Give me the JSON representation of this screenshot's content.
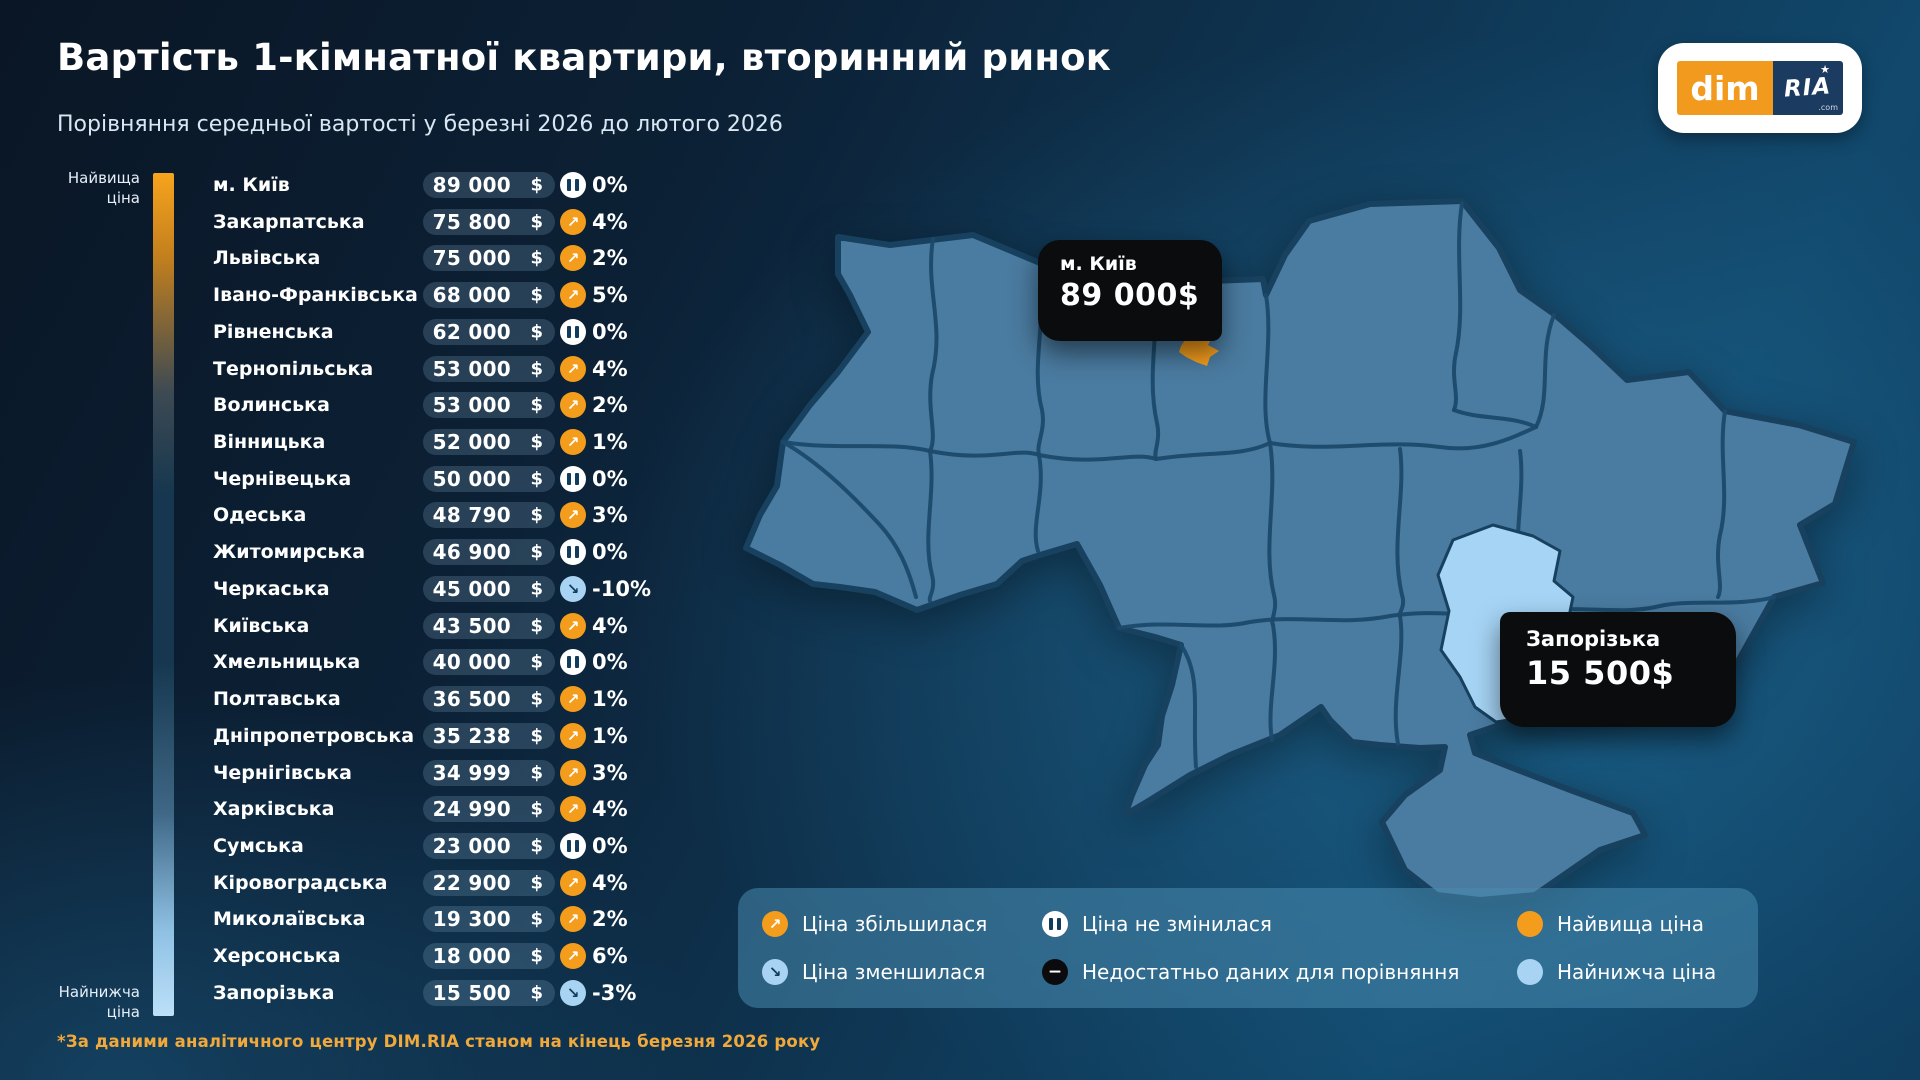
{
  "header": {
    "title": "Вартість 1-кімнатної квартири, вторинний ринок",
    "subtitle": "Порівняння середньої вартості у березні 2026 до лютого 2026"
  },
  "logo": {
    "dim": "dim",
    "ria": "RIA",
    "com": ".com",
    "star": "★"
  },
  "scale": {
    "top": "Найвища ціна",
    "bottom": "Найнижча ціна"
  },
  "currency": "$",
  "footnote": "*За даними аналітичного центру DIM.RIA станом на кінець березня 2026 року",
  "callouts": [
    {
      "id": "kyiv",
      "title": "м. Київ",
      "value": "89 000$"
    },
    {
      "id": "zaporizka",
      "title": "Запорізька",
      "value": "15 500$"
    }
  ],
  "legend": {
    "items": [
      {
        "icon": "up",
        "label": "Ціна збільшилася"
      },
      {
        "icon": "same",
        "label": "Ціна не змінилася"
      },
      {
        "icon": "dot-high",
        "label": "Найвища ціна"
      },
      {
        "icon": "down",
        "label": "Ціна зменшилася"
      },
      {
        "icon": "nodata",
        "label": "Недостатньо даних для порівняння"
      },
      {
        "icon": "dot-low",
        "label": "Найнижча ціна"
      }
    ]
  },
  "colors": {
    "accent_orange": "#F49D1D",
    "accent_light_blue": "#A9D3F2",
    "map_fill": "#4A7BA0",
    "map_border": "#17415F",
    "callout_bg": "#0B0C0E",
    "legend_bg": "#2E7094"
  },
  "chart_data": {
    "type": "table",
    "title": "Вартість 1-кімнатної квартири, вторинний ринок",
    "subtitle": "Порівняння середньої вартості у березні 2026 до лютого 2026",
    "unit": "USD",
    "columns": [
      "region",
      "price_usd",
      "change_pct",
      "trend"
    ],
    "rows": [
      {
        "region": "м. Київ",
        "price": "89 000",
        "change": "0%",
        "trend": "same"
      },
      {
        "region": "Закарпатська",
        "price": "75 800",
        "change": "4%",
        "trend": "up"
      },
      {
        "region": "Львівська",
        "price": "75 000",
        "change": "2%",
        "trend": "up"
      },
      {
        "region": "Івано-Франківська",
        "price": "68 000",
        "change": "5%",
        "trend": "up"
      },
      {
        "region": "Рівненська",
        "price": "62 000",
        "change": "0%",
        "trend": "same"
      },
      {
        "region": "Тернопільська",
        "price": "53 000",
        "change": "4%",
        "trend": "up"
      },
      {
        "region": "Волинська",
        "price": "53 000",
        "change": "2%",
        "trend": "up"
      },
      {
        "region": "Вінницька",
        "price": "52 000",
        "change": "1%",
        "trend": "up"
      },
      {
        "region": "Чернівецька",
        "price": "50 000",
        "change": "0%",
        "trend": "same"
      },
      {
        "region": "Одеська",
        "price": "48 790",
        "change": "3%",
        "trend": "up"
      },
      {
        "region": "Житомирська",
        "price": "46 900",
        "change": "0%",
        "trend": "same"
      },
      {
        "region": "Черкаська",
        "price": "45 000",
        "change": "-10%",
        "trend": "down"
      },
      {
        "region": "Київська",
        "price": "43 500",
        "change": "4%",
        "trend": "up"
      },
      {
        "region": "Хмельницька",
        "price": "40 000",
        "change": "0%",
        "trend": "same"
      },
      {
        "region": "Полтавська",
        "price": "36 500",
        "change": "1%",
        "trend": "up"
      },
      {
        "region": "Дніпропетровська",
        "price": "35 238",
        "change": "1%",
        "trend": "up"
      },
      {
        "region": "Чернігівська",
        "price": "34 999",
        "change": "3%",
        "trend": "up"
      },
      {
        "region": "Харківська",
        "price": "24 990",
        "change": "4%",
        "trend": "up"
      },
      {
        "region": "Сумська",
        "price": "23 000",
        "change": "0%",
        "trend": "same"
      },
      {
        "region": "Кіровоградська",
        "price": "22 900",
        "change": "4%",
        "trend": "up"
      },
      {
        "region": "Миколаївська",
        "price": "19 300",
        "change": "2%",
        "trend": "up"
      },
      {
        "region": "Херсонська",
        "price": "18 000",
        "change": "6%",
        "trend": "up"
      },
      {
        "region": "Запорізька",
        "price": "15 500",
        "change": "-3%",
        "trend": "down"
      }
    ],
    "map_highlights": [
      {
        "region": "м. Київ",
        "value": "89 000$",
        "color": "#F49D1D"
      },
      {
        "region": "Запорізька",
        "value": "15 500$",
        "color": "#A9D3F2"
      }
    ]
  }
}
